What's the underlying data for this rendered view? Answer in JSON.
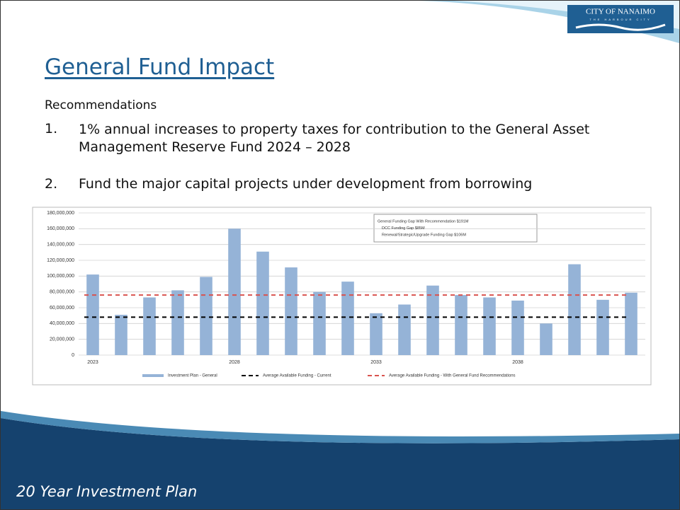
{
  "header": {
    "logo": "CITY OF NANAIMO",
    "logo_tagline": "THE HARBOUR CITY",
    "title": "General Fund Impact",
    "subtitle": "Recommendations"
  },
  "items": [
    {
      "number": "1.",
      "text": "1% annual increases to property taxes for contribution to the General Asset Management Reserve Fund 2024 – 2028"
    },
    {
      "number": "2.",
      "text": "Fund the major capital projects under development from borrowing"
    }
  ],
  "footer": "20 Year Investment Plan",
  "chart_data": {
    "type": "bar",
    "categories": [
      "2023",
      null,
      null,
      null,
      null,
      "2028",
      null,
      null,
      null,
      null,
      "2033",
      null,
      null,
      null,
      null,
      "2038",
      null,
      null,
      null,
      null
    ],
    "series": [
      {
        "name": "Investment Plan - General",
        "color": "#95b3d7",
        "values": [
          102000000,
          51000000,
          73000000,
          82000000,
          99000000,
          160000000,
          131000000,
          111000000,
          80000000,
          93000000,
          53000000,
          64000000,
          88000000,
          76000000,
          73000000,
          69000000,
          40000000,
          115000000,
          70000000,
          79000000
        ]
      }
    ],
    "lines": [
      {
        "name": "Average Available Funding - Current",
        "color": "#000000",
        "value": 48000000
      },
      {
        "name": "Average Available Funding - With General Fund Recommendations",
        "color": "#d9534f",
        "value": 76000000
      }
    ],
    "annotation": [
      "General Funding Gap With Recommendation $191M",
      "DCC Funding Gap $85M",
      "Renewal/Strategic/Upgrade Funding Gap $106M"
    ],
    "ylim": [
      0,
      180000000
    ],
    "yticks": [
      0,
      {
        "value": 20000000,
        "label": "20,000,000"
      },
      {
        "value": 40000000,
        "label": "40,000,000"
      },
      {
        "value": 60000000,
        "label": "60,000,000"
      },
      {
        "value": 80000000,
        "label": "80,000,000"
      },
      {
        "value": 100000000,
        "label": "100,000,000"
      },
      {
        "value": 120000000,
        "label": "120,000,000"
      },
      {
        "value": 140000000,
        "label": "140,000,000"
      },
      {
        "value": 160000000,
        "label": "160,000,000"
      },
      {
        "value": 180000000,
        "label": "180,000,000"
      }
    ],
    "grid": true
  }
}
